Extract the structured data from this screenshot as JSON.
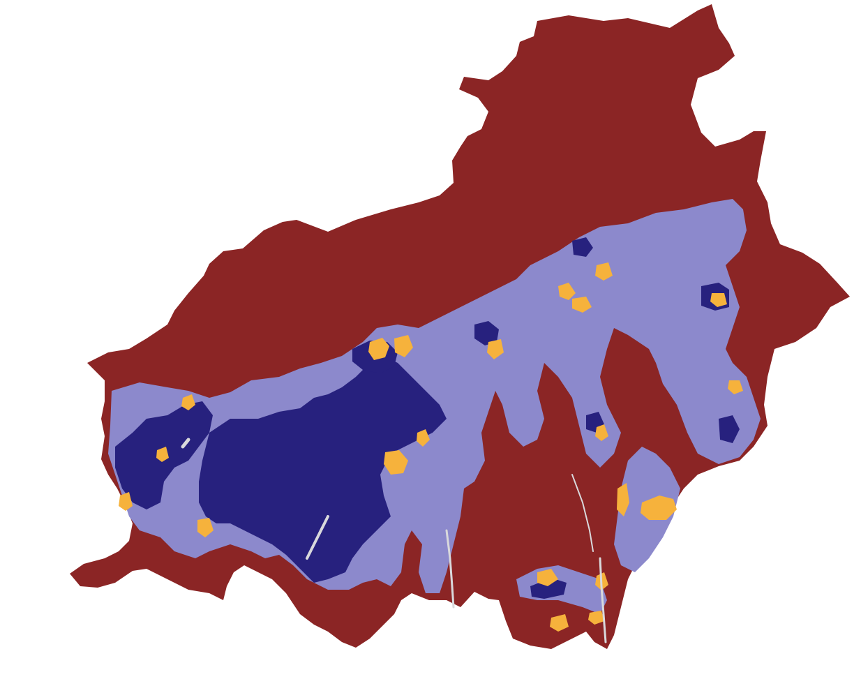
{
  "map": {
    "classes": [
      {
        "key": "background",
        "color": "#8b2525"
      },
      {
        "key": "moderate",
        "color": "#8c89cc"
      },
      {
        "key": "high",
        "color": "#27217e"
      },
      {
        "key": "highlight",
        "color": "#f6b23c"
      },
      {
        "key": "water",
        "color": "#d9d9dc"
      }
    ]
  }
}
